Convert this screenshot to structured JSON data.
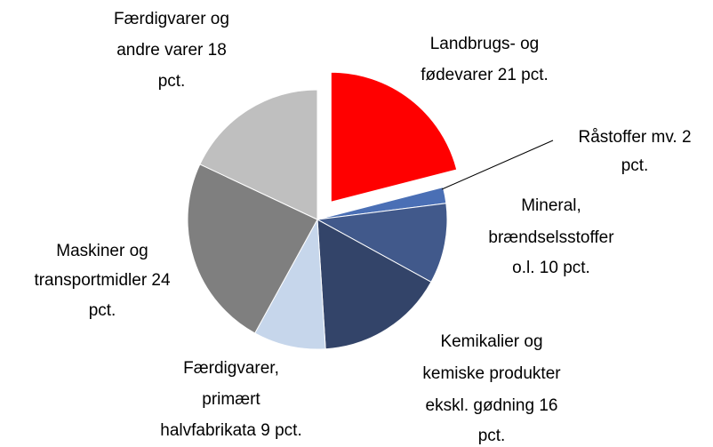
{
  "chart_data": {
    "type": "pie",
    "labels": [
      [
        "Landbrugs- og",
        "fødevarer 21 pct."
      ],
      [
        "Råstoffer mv. 2",
        "pct."
      ],
      [
        "Mineral,",
        "brændselsstoffer",
        "o.l. 10 pct."
      ],
      [
        "Kemikalier og",
        "kemiske produkter",
        "ekskl. gødning 16",
        "pct."
      ],
      [
        "Færdigvarer,",
        "primært",
        "halvfabrikata 9 pct."
      ],
      [
        "Maskiner og",
        "transportmidler 24",
        "pct."
      ],
      [
        "Færdigvarer og",
        "andre varer 18",
        "pct."
      ]
    ],
    "values": [
      21,
      2,
      10,
      16,
      9,
      24,
      18
    ],
    "colors": [
      "#ff0000",
      "#4a6fb5",
      "#41598b",
      "#334469",
      "#c6d6eb",
      "#7f7f7f",
      "#bfbfbf"
    ],
    "exploded": [
      0
    ]
  }
}
